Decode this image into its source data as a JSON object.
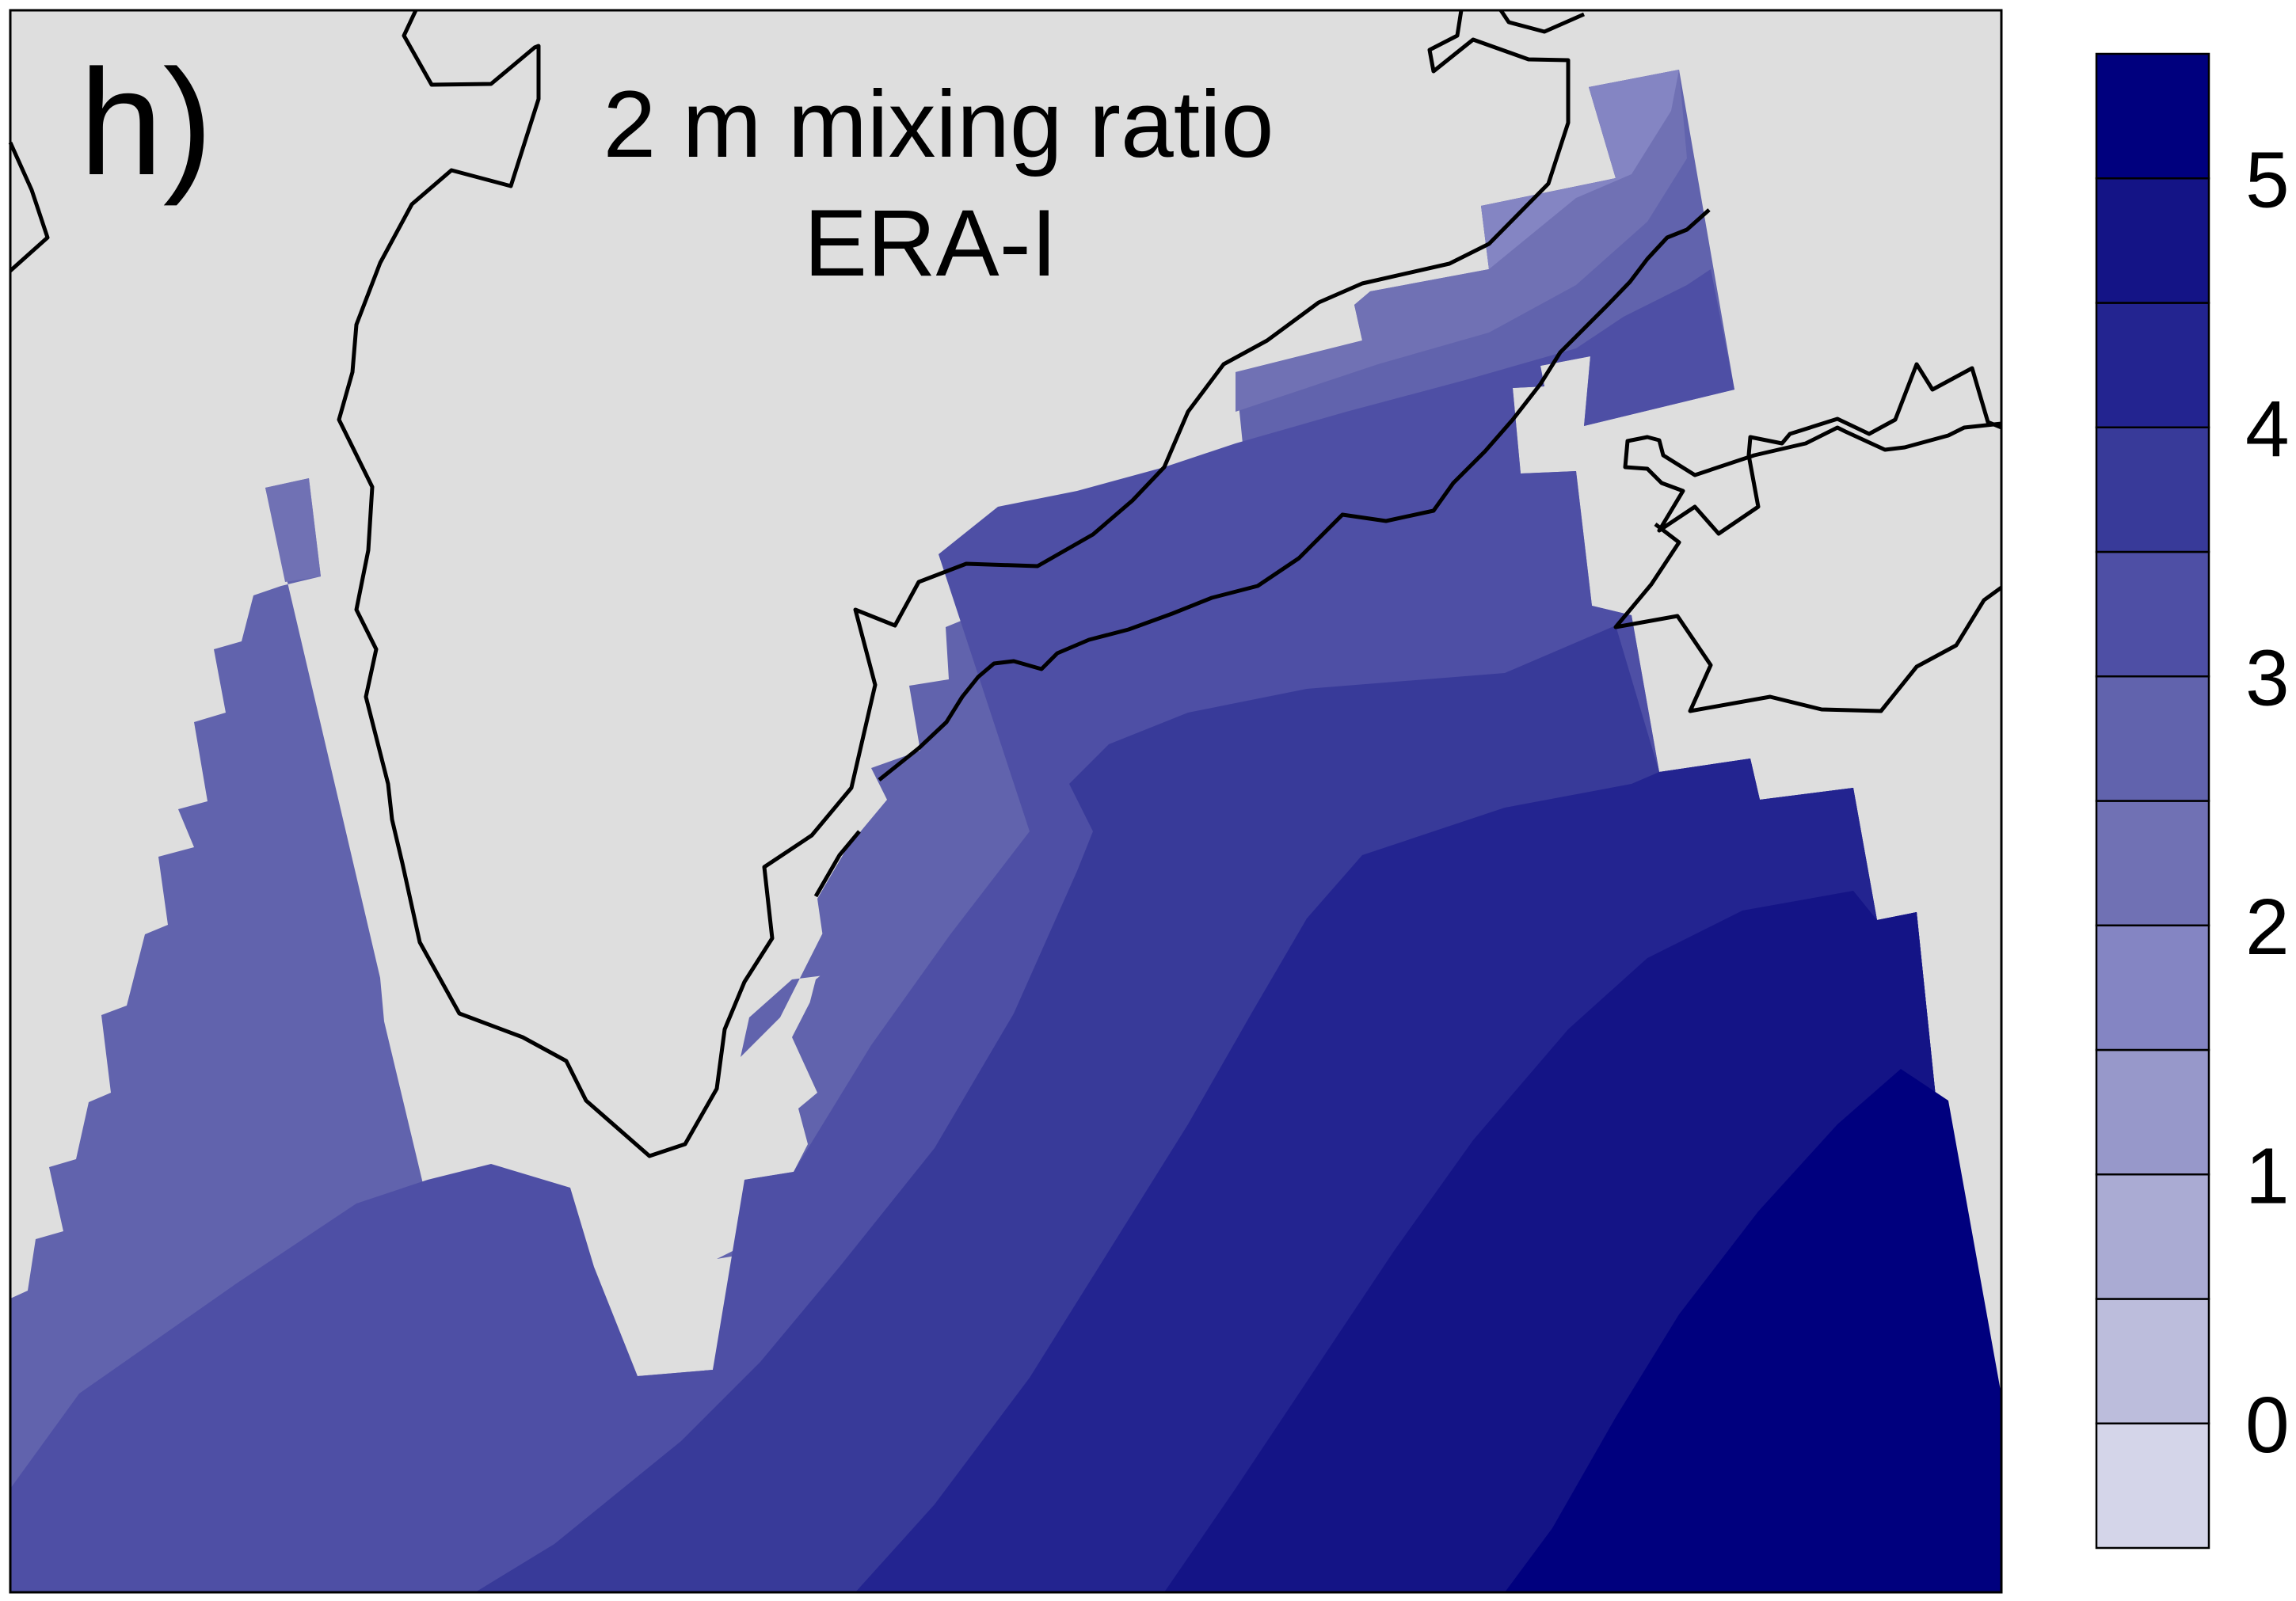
{
  "panel": {
    "letter": "h)",
    "title_line1": "2 m mixing ratio",
    "title_line2": "ERA-I"
  },
  "colors": {
    "land": "#dedede",
    "coast": "#000000",
    "levels": [
      "#d4d5e9",
      "#bcbddc",
      "#aaabd3",
      "#9798ca",
      "#8485c3",
      "#7071b4",
      "#6163ad",
      "#4e4fa5",
      "#383a99",
      "#232490",
      "#141486",
      "#00007e"
    ]
  },
  "colorbar": {
    "levels": [
      0,
      0.5,
      1,
      1.5,
      2,
      2.5,
      3,
      3.5,
      4,
      4.5,
      5
    ],
    "tick_labels": [
      "0",
      "1",
      "2",
      "3",
      "4",
      "5"
    ],
    "tick_values": [
      0,
      1,
      2,
      3,
      4,
      5
    ]
  }
}
